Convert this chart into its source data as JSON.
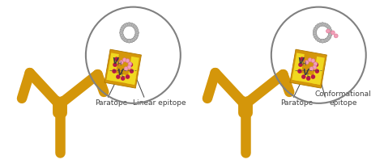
{
  "bg_color": "#ffffff",
  "antibody_color": "#D4960A",
  "antibody_mid": "#C98A08",
  "antibody_light": "#E8C060",
  "antibody_shadow": "#B07800",
  "yellow_highlight": "#F0D820",
  "epitope_linear_color": "#F0A0B8",
  "chain_color": "#B8B8B8",
  "chain_outline": "#A0A0A0",
  "paratope_dot_color": "#B81848",
  "circle_color": "#808080",
  "label_color": "#404040",
  "label1_paratope": "Paratope",
  "label1_epitope": "Linear epitope",
  "label2_paratope": "Paratope",
  "label2_epitope": "Conformational\nepitope",
  "font_size": 6.5,
  "fig_width": 4.74,
  "fig_height": 2.08,
  "dpi": 100
}
